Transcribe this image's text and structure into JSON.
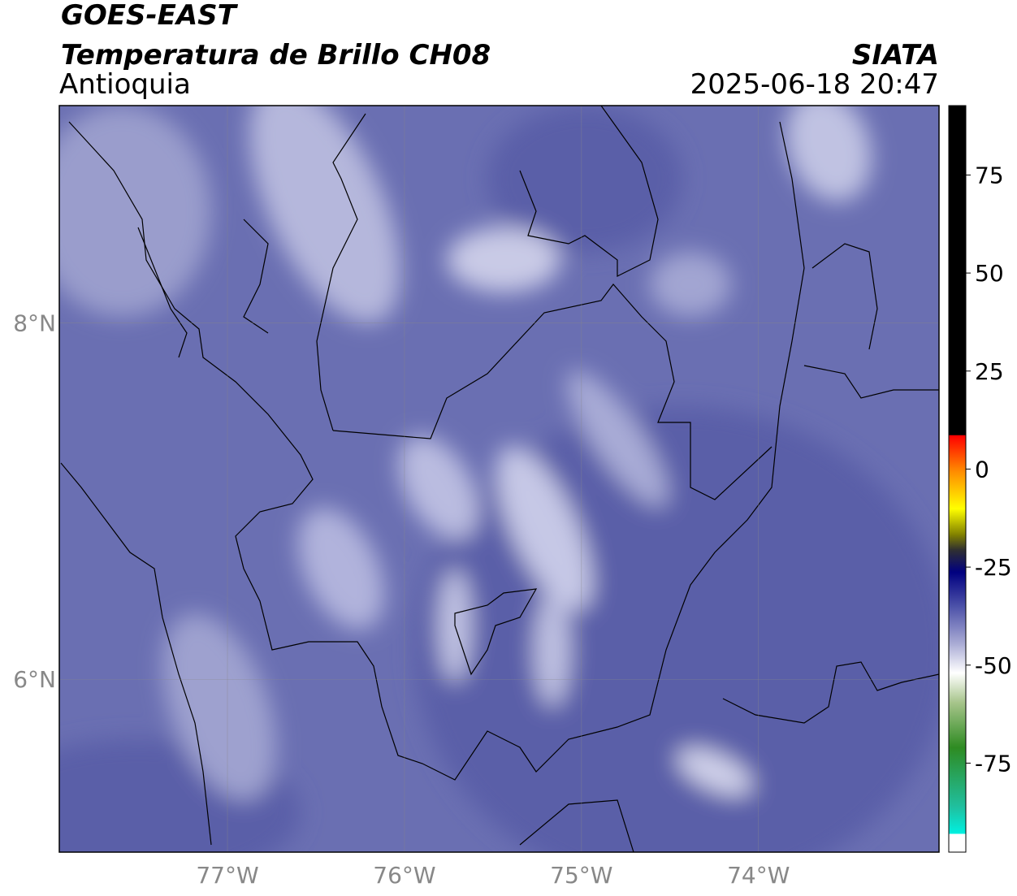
{
  "header": {
    "title": "GOES-EAST",
    "subtitle": "Temperatura de Brillo CH08",
    "region": "Antioquia",
    "source": "SIATA",
    "timestamp": "2025-06-18 20:47"
  },
  "map": {
    "xlim": [
      -77.95,
      -72.98
    ],
    "ylim": [
      5.03,
      9.22
    ],
    "xticks": [
      {
        "value": -77,
        "label": "77°W"
      },
      {
        "value": -76,
        "label": "76°W"
      },
      {
        "value": -75,
        "label": "75°W"
      },
      {
        "value": -74,
        "label": "74°W"
      }
    ],
    "yticks": [
      {
        "value": 6,
        "label": "6°N"
      },
      {
        "value": 8,
        "label": "8°N"
      }
    ],
    "grid": true
  },
  "colorbar": {
    "lim": [
      -97.7,
      92.7
    ],
    "ticks": [
      75,
      50,
      25,
      0,
      -25,
      -50,
      -75
    ]
  }
}
